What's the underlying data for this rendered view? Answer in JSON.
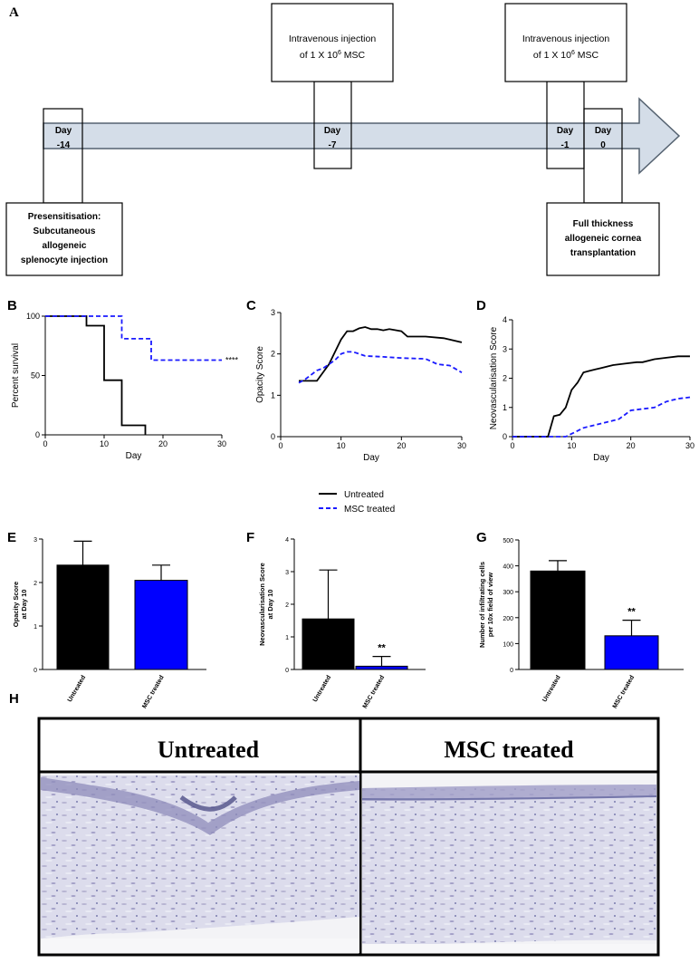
{
  "colors": {
    "untreated": "#000000",
    "msc": "#1a1aff",
    "arrow_fill": "#d4dde8",
    "arrow_stroke": "#556270",
    "tissue": "#d8d9ea"
  },
  "panel_a": {
    "letter": "A",
    "days": [
      {
        "label": "Day",
        "value": "-14"
      },
      {
        "label": "Day",
        "value": "-7"
      },
      {
        "label": "Day",
        "value": "-1"
      },
      {
        "label": "Day",
        "value": "0"
      }
    ],
    "inj1": {
      "line1": "Intravenous injection",
      "line2_pre": "of 1 X 10",
      "sup": "6",
      "line2_post": " MSC"
    },
    "inj2": {
      "line1": "Intravenous injection",
      "line2_pre": "of 1 X 10",
      "sup": "6",
      "line2_post": " MSC"
    },
    "presens": [
      "Presensitisation:",
      "Subcutaneous",
      "allogeneic",
      "splenocyte injection"
    ],
    "transplant": [
      "Full thickness",
      "allogeneic cornea",
      "transplantation"
    ]
  },
  "legend": {
    "untreated": "Untreated",
    "msc": "MSC treated"
  },
  "panel_h": {
    "letter": "H",
    "left_title": "Untreated",
    "right_title": "MSC treated"
  },
  "chart_data": [
    {
      "panel": "B",
      "type": "line",
      "xlabel": "Day",
      "ylabel": "Percent survival",
      "xlim": [
        0,
        30
      ],
      "ylim": [
        0,
        100
      ],
      "xticks": [
        0,
        10,
        20,
        30
      ],
      "yticks": [
        0,
        50,
        100
      ],
      "annotation": "****",
      "series": [
        {
          "name": "Untreated",
          "step": true,
          "x": [
            0,
            7,
            7,
            10,
            10,
            13,
            13,
            17,
            17
          ],
          "y": [
            100,
            100,
            92,
            92,
            46,
            46,
            8,
            8,
            0
          ]
        },
        {
          "name": "MSC treated",
          "step": true,
          "x": [
            0,
            13,
            13,
            18,
            18,
            30
          ],
          "y": [
            100,
            100,
            81,
            81,
            63,
            63
          ]
        }
      ]
    },
    {
      "panel": "C",
      "type": "line",
      "xlabel": "Day",
      "ylabel": "Opacity Score",
      "xlim": [
        0,
        30
      ],
      "ylim": [
        0,
        3
      ],
      "xticks": [
        0,
        10,
        20,
        30
      ],
      "yticks": [
        0,
        1,
        2,
        3
      ],
      "series": [
        {
          "name": "Untreated",
          "x": [
            3,
            5,
            6,
            8,
            10,
            11,
            12,
            13,
            14,
            15,
            16,
            17,
            18,
            20,
            21,
            24,
            27,
            30
          ],
          "y": [
            1.35,
            1.35,
            1.35,
            1.75,
            2.35,
            2.55,
            2.55,
            2.62,
            2.65,
            2.6,
            2.6,
            2.57,
            2.6,
            2.55,
            2.42,
            2.42,
            2.38,
            2.28
          ]
        },
        {
          "name": "MSC treated",
          "x": [
            3,
            4,
            6,
            7,
            9,
            10,
            11,
            12,
            14,
            17,
            20,
            24,
            26,
            28,
            30
          ],
          "y": [
            1.3,
            1.38,
            1.6,
            1.65,
            1.85,
            2.0,
            2.05,
            2.05,
            1.95,
            1.93,
            1.9,
            1.88,
            1.75,
            1.72,
            1.55
          ]
        }
      ]
    },
    {
      "panel": "D",
      "type": "line",
      "xlabel": "Day",
      "ylabel": "Neovascularisation Score",
      "xlim": [
        0,
        30
      ],
      "ylim": [
        0,
        4
      ],
      "xticks": [
        0,
        10,
        20,
        30
      ],
      "yticks": [
        0,
        1,
        2,
        3,
        4
      ],
      "series": [
        {
          "name": "Untreated",
          "x": [
            0,
            6,
            7,
            8,
            9,
            10,
            11,
            12,
            13,
            14,
            15,
            16,
            17,
            19,
            21,
            22,
            24,
            26,
            28,
            30
          ],
          "y": [
            0,
            0,
            0.7,
            0.75,
            1.0,
            1.6,
            1.85,
            2.2,
            2.25,
            2.3,
            2.35,
            2.4,
            2.45,
            2.5,
            2.55,
            2.55,
            2.65,
            2.7,
            2.75,
            2.75
          ]
        },
        {
          "name": "MSC treated",
          "x": [
            0,
            9,
            10,
            11,
            12,
            13,
            14,
            15,
            16,
            17,
            18,
            20,
            22,
            24,
            26,
            28,
            30
          ],
          "y": [
            0,
            0,
            0.1,
            0.2,
            0.3,
            0.35,
            0.4,
            0.45,
            0.5,
            0.55,
            0.6,
            0.9,
            0.95,
            1.0,
            1.2,
            1.3,
            1.35
          ]
        }
      ]
    },
    {
      "panel": "E",
      "type": "bar",
      "ylabel": "Opacity Score at Day 10",
      "categories": [
        "Untreated",
        "MSC treated"
      ],
      "values": [
        2.4,
        2.05
      ],
      "errors": [
        0.55,
        0.35
      ],
      "ylim": [
        0,
        3
      ],
      "yticks": [
        0,
        1,
        2,
        3
      ],
      "significance": [
        "",
        ""
      ]
    },
    {
      "panel": "F",
      "type": "bar",
      "ylabel": "Neovascularisation Score at Day 10",
      "categories": [
        "Untreated",
        "MSC treated"
      ],
      "values": [
        1.55,
        0.1
      ],
      "errors": [
        1.5,
        0.3
      ],
      "ylim": [
        0,
        4
      ],
      "yticks": [
        0,
        1,
        2,
        3,
        4
      ],
      "significance": [
        "",
        "**"
      ]
    },
    {
      "panel": "G",
      "type": "bar",
      "ylabel": "Number of infiltrating cells per 10x field of view",
      "categories": [
        "Untreated",
        "MSC treated"
      ],
      "values": [
        380,
        130
      ],
      "errors": [
        40,
        60
      ],
      "ylim": [
        0,
        500
      ],
      "yticks": [
        0,
        100,
        200,
        300,
        400,
        500
      ],
      "significance": [
        "",
        "**"
      ]
    }
  ]
}
